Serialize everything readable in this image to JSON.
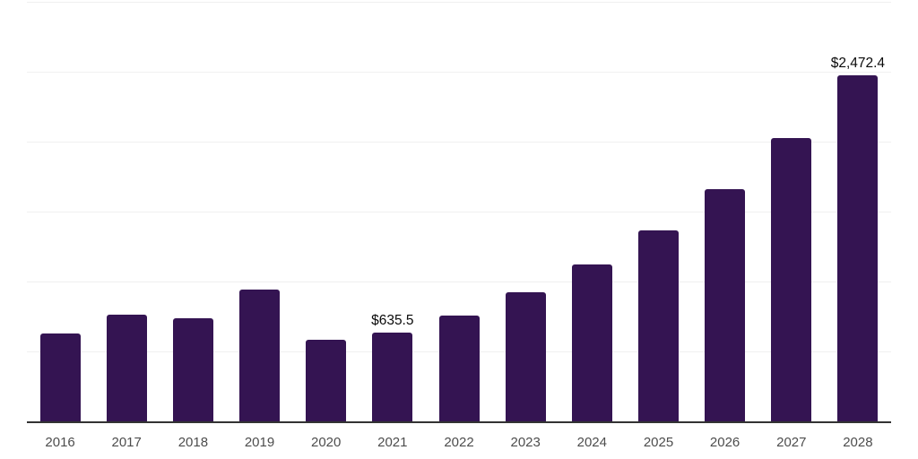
{
  "chart_data": {
    "type": "bar",
    "title": "",
    "xlabel": "",
    "ylabel": "",
    "categories": [
      "2016",
      "2017",
      "2018",
      "2019",
      "2020",
      "2021",
      "2022",
      "2023",
      "2024",
      "2025",
      "2026",
      "2027",
      "2028"
    ],
    "values": [
      630,
      765,
      735,
      940,
      585,
      635.5,
      755,
      925,
      1125,
      1365,
      1660,
      2025,
      2472.4
    ],
    "data_labels": [
      "",
      "",
      "",
      "",
      "",
      "$635.5",
      "",
      "",
      "",
      "",
      "",
      "",
      "$2,472.4"
    ],
    "ylim": [
      0,
      3000
    ],
    "gridline_values": [
      500,
      1000,
      1500,
      2000,
      2500,
      3000
    ],
    "grid": "horizontal-only",
    "y_axis_tick_labels": "none",
    "legend_position": "none",
    "colors": {
      "bar": "#341452",
      "gridline": "#f0f0f0",
      "axis_line": "#333333",
      "value_label": "#0a0a0a",
      "tick_label": "#4d4d4d",
      "background": "#ffffff"
    }
  }
}
